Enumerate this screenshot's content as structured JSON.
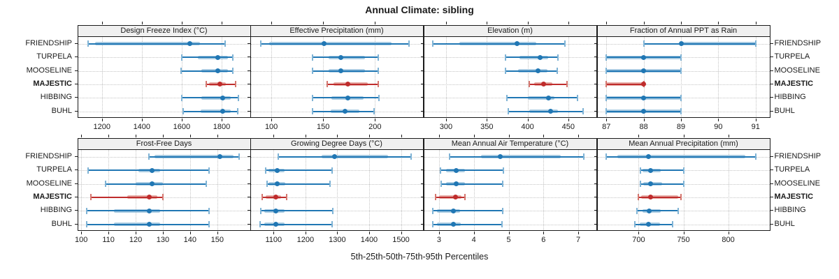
{
  "title": "Annual Climate: sibling",
  "caption": "5th-25th-50th-75th-95th Percentiles",
  "sites": [
    "FRIENDSHIP",
    "TURPELA",
    "MOOSELINE",
    "MAJESTIC",
    "HIBBING",
    "BUHL"
  ],
  "highlight_site": "MAJESTIC",
  "colors": {
    "blue": "#2077b4",
    "blue_light": "#a9cbe2",
    "blue_cap": "#7fb3d5",
    "red": "#bf2c2c",
    "red_light": "#e5aaa4",
    "red_cap": "#d4766e",
    "header_bg": "#f0f0f0",
    "grid": "#c4c4c4",
    "border": "#1a1a1a"
  },
  "chart_data": {
    "type": "dotplot-percentiles",
    "note": "Each row shows 5th-25th-50th-75th-95th percentiles: thin line 5th-95th, thick light band 25th-75th, dot = median",
    "percentile_labels": [
      "5th",
      "25th",
      "50th",
      "75th",
      "95th"
    ],
    "legend_position": "none",
    "grid": "dotted",
    "row_order_top_to_bottom": [
      "FRIENDSHIP",
      "TURPELA",
      "MOOSELINE",
      "MAJESTIC",
      "HIBBING",
      "BUHL"
    ],
    "panels": [
      {
        "title": "Design Freeze Index (°C)",
        "grid_row": 0,
        "col": 0,
        "xlim": [
          1080,
          1942
        ],
        "ticks": [
          1200,
          1400,
          1600,
          1800
        ],
        "values": [
          [
            1130,
            1165,
            1641,
            1693,
            1819
          ],
          [
            1600,
            1681,
            1781,
            1833,
            1856
          ],
          [
            1598,
            1699,
            1781,
            1833,
            1856
          ],
          [
            1722,
            1737,
            1792,
            1821,
            1870
          ],
          [
            1602,
            1699,
            1804,
            1844,
            1885
          ],
          [
            1606,
            1694,
            1804,
            1844,
            1882
          ]
        ]
      },
      {
        "title": "Effective Precipitation (mm)",
        "grid_row": 0,
        "col": 1,
        "xlim": [
          80,
          246
        ],
        "ticks": [
          100,
          150,
          200
        ],
        "values": [
          [
            90,
            98,
            151,
            216,
            233
          ],
          [
            140,
            155,
            167,
            190,
            203
          ],
          [
            140,
            155,
            167,
            190,
            203
          ],
          [
            154,
            160,
            174,
            193,
            203
          ],
          [
            140,
            158,
            174,
            189,
            204
          ],
          [
            140,
            157,
            171,
            185,
            199
          ]
        ]
      },
      {
        "title": "Elevation (m)",
        "grid_row": 0,
        "col": 2,
        "xlim": [
          273,
          484
        ],
        "ticks": [
          300,
          350,
          400,
          450
        ],
        "values": [
          [
            284,
            316,
            387,
            411,
            446
          ],
          [
            373,
            390,
            415,
            425,
            437
          ],
          [
            373,
            388,
            413,
            424,
            436
          ],
          [
            402,
            408,
            420,
            430,
            448
          ],
          [
            375,
            400,
            426,
            433,
            461
          ],
          [
            376,
            402,
            428,
            437,
            468
          ]
        ]
      },
      {
        "title": "Fraction of Annual PPT as Rain",
        "grid_row": 0,
        "col": 3,
        "xlim": [
          86.76,
          91.37
        ],
        "ticks": [
          87,
          88,
          89,
          90,
          91
        ],
        "values": [
          [
            88,
            89,
            89,
            91,
            91
          ],
          [
            87,
            87,
            88,
            89,
            89
          ],
          [
            87,
            87,
            88,
            89,
            89
          ],
          [
            87,
            87,
            88,
            88,
            88
          ],
          [
            87,
            87,
            88,
            89,
            89
          ],
          [
            87,
            87,
            88,
            89,
            89
          ]
        ]
      },
      {
        "title": "Frost-Free Days",
        "grid_row": 1,
        "col": 0,
        "xlim": [
          98.8,
          162
        ],
        "ticks": [
          100,
          110,
          120,
          130,
          140,
          150
        ],
        "values": [
          [
            125,
            127,
            151,
            156,
            158
          ],
          [
            102.5,
            121,
            126,
            129,
            147
          ],
          [
            109,
            120,
            126,
            130,
            146
          ],
          [
            103.5,
            117,
            125,
            128,
            130
          ],
          [
            102,
            112,
            125,
            129,
            147
          ],
          [
            102,
            112,
            125,
            129,
            147
          ]
        ]
      },
      {
        "title": "Growing Degree Days (°C)",
        "grid_row": 1,
        "col": 1,
        "xlim": [
          1028,
          1568
        ],
        "ticks": [
          1100,
          1200,
          1300,
          1400,
          1500
        ],
        "values": [
          [
            1115,
            1250,
            1291,
            1460,
            1532
          ],
          [
            1075,
            1085,
            1111,
            1135,
            1283
          ],
          [
            1079,
            1085,
            1111,
            1137,
            1278
          ],
          [
            1065,
            1075,
            1106,
            1124,
            1140
          ],
          [
            1059,
            1071,
            1107,
            1134,
            1285
          ],
          [
            1057,
            1071,
            1106,
            1134,
            1283
          ]
        ]
      },
      {
        "title": "Mean Annual Air Temperature (°C)",
        "grid_row": 1,
        "col": 2,
        "xlim": [
          2.57,
          7.51
        ],
        "ticks": [
          3,
          4,
          5,
          6,
          7
        ],
        "values": [
          [
            3.3,
            4.2,
            4.75,
            6.5,
            7.15
          ],
          [
            3.05,
            3.2,
            3.5,
            3.75,
            4.85
          ],
          [
            3.06,
            3.2,
            3.5,
            3.75,
            4.83
          ],
          [
            2.91,
            3.0,
            3.48,
            3.65,
            3.74
          ],
          [
            2.83,
            2.95,
            3.41,
            3.6,
            4.82
          ],
          [
            2.83,
            2.95,
            3.42,
            3.62,
            4.81
          ]
        ]
      },
      {
        "title": "Mean Annual Precipitation (mm)",
        "grid_row": 1,
        "col": 3,
        "xlim": [
          654,
          846
        ],
        "ticks": [
          700,
          750,
          800
        ],
        "values": [
          [
            664,
            676,
            711,
            819,
            831
          ],
          [
            702,
            704,
            713,
            725,
            750
          ],
          [
            702,
            705,
            713,
            726,
            750
          ],
          [
            700,
            703,
            713,
            744,
            747
          ],
          [
            698,
            704,
            712,
            725,
            744
          ],
          [
            696,
            701,
            711,
            724,
            738
          ]
        ]
      }
    ]
  }
}
